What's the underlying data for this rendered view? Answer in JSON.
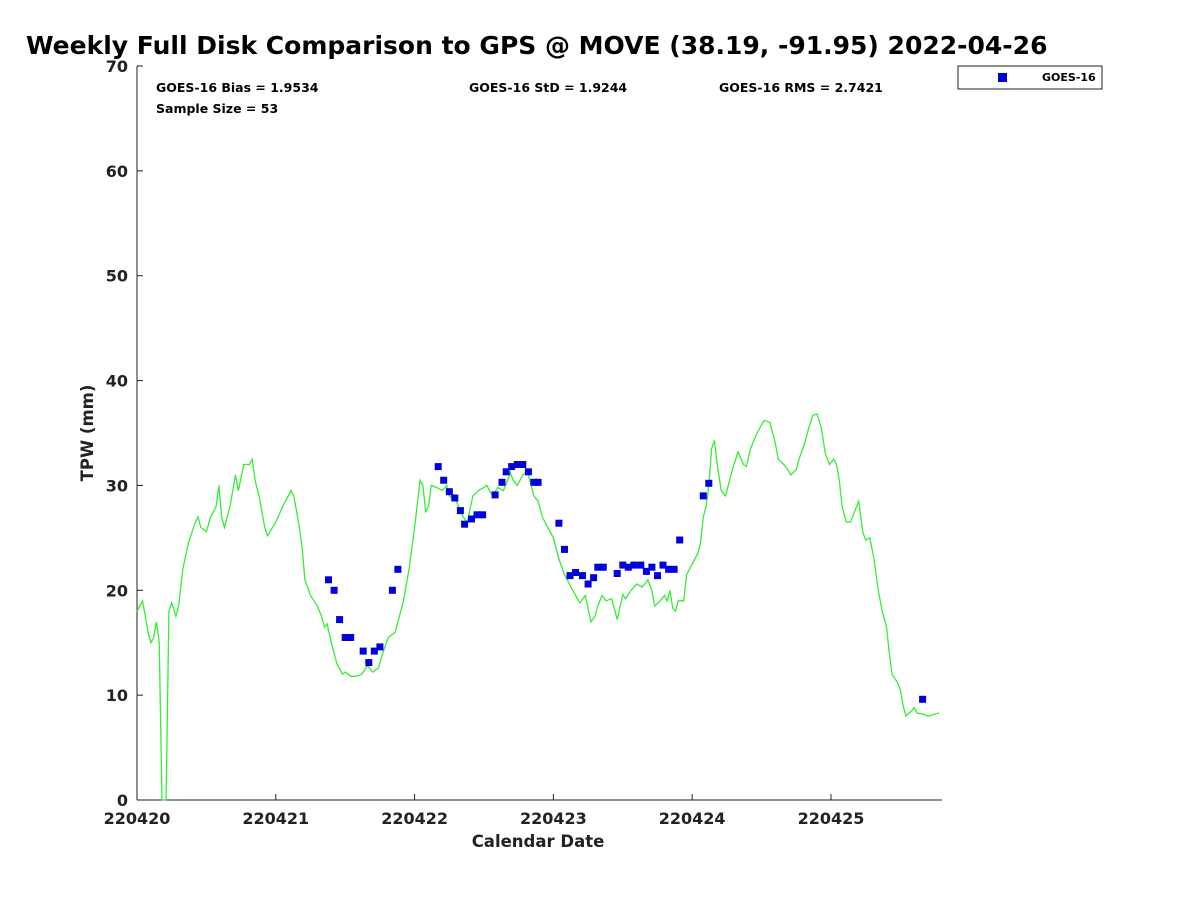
{
  "chart_data": {
    "type": "scatter",
    "title": "Weekly Full Disk Comparison to GPS @ MOVE (38.19, -91.95) 2022-04-26",
    "xlabel": "Calendar Date",
    "ylabel": "TPW (mm)",
    "xlim": [
      0,
      5.8
    ],
    "ylim": [
      0,
      70
    ],
    "x_ticks": [
      0,
      1,
      2,
      3,
      4,
      5
    ],
    "x_tick_labels": [
      "220420",
      "220421",
      "220422",
      "220423",
      "220424",
      "220425"
    ],
    "y_ticks": [
      0,
      10,
      20,
      30,
      40,
      50,
      60,
      70
    ],
    "y_tick_labels": [
      "0",
      "10",
      "20",
      "30",
      "40",
      "50",
      "60",
      "70"
    ],
    "grid": false,
    "legend_position": "top-right",
    "stats": {
      "bias": "GOES-16 Bias = 1.9534",
      "std": "GOES-16 StD = 1.9244",
      "rms": "GOES-16 RMS = 2.7421",
      "sample": "Sample Size = 53"
    },
    "series": [
      {
        "name": "GOES-16",
        "kind": "scatter",
        "marker": "square",
        "color": "#0000dd",
        "points": [
          [
            1.38,
            21.0
          ],
          [
            1.42,
            20.0
          ],
          [
            1.46,
            17.2
          ],
          [
            1.5,
            15.5
          ],
          [
            1.54,
            15.5
          ],
          [
            1.63,
            14.2
          ],
          [
            1.67,
            13.1
          ],
          [
            1.71,
            14.2
          ],
          [
            1.75,
            14.6
          ],
          [
            1.84,
            20.0
          ],
          [
            1.88,
            22.0
          ],
          [
            2.17,
            31.8
          ],
          [
            2.21,
            30.5
          ],
          [
            2.25,
            29.4
          ],
          [
            2.29,
            28.8
          ],
          [
            2.33,
            27.6
          ],
          [
            2.36,
            26.3
          ],
          [
            2.41,
            26.8
          ],
          [
            2.45,
            27.2
          ],
          [
            2.49,
            27.2
          ],
          [
            2.58,
            29.1
          ],
          [
            2.63,
            30.3
          ],
          [
            2.66,
            31.3
          ],
          [
            2.7,
            31.8
          ],
          [
            2.74,
            32.0
          ],
          [
            2.78,
            32.0
          ],
          [
            2.82,
            31.3
          ],
          [
            2.86,
            30.3
          ],
          [
            2.89,
            30.3
          ],
          [
            3.04,
            26.4
          ],
          [
            3.08,
            23.9
          ],
          [
            3.12,
            21.4
          ],
          [
            3.16,
            21.7
          ],
          [
            3.21,
            21.4
          ],
          [
            3.25,
            20.6
          ],
          [
            3.29,
            21.2
          ],
          [
            3.32,
            22.2
          ],
          [
            3.36,
            22.2
          ],
          [
            3.46,
            21.6
          ],
          [
            3.5,
            22.4
          ],
          [
            3.54,
            22.2
          ],
          [
            3.58,
            22.4
          ],
          [
            3.63,
            22.4
          ],
          [
            3.67,
            21.8
          ],
          [
            3.71,
            22.2
          ],
          [
            3.75,
            21.4
          ],
          [
            3.79,
            22.4
          ],
          [
            3.83,
            22.0
          ],
          [
            3.87,
            22.0
          ],
          [
            3.91,
            24.8
          ],
          [
            4.08,
            29.0
          ],
          [
            4.12,
            30.2
          ],
          [
            5.66,
            9.6
          ]
        ]
      },
      {
        "name": "GPS",
        "kind": "line",
        "color": "#33ee33",
        "points": [
          [
            0.0,
            18.0
          ],
          [
            0.04,
            19.0
          ],
          [
            0.08,
            16.0
          ],
          [
            0.1,
            15.0
          ],
          [
            0.12,
            15.5
          ],
          [
            0.14,
            17.0
          ],
          [
            0.16,
            15.0
          ],
          [
            0.18,
            0.0
          ],
          [
            0.21,
            0.0
          ],
          [
            0.23,
            18.0
          ],
          [
            0.25,
            18.8
          ],
          [
            0.28,
            17.5
          ],
          [
            0.3,
            18.5
          ],
          [
            0.33,
            22.0
          ],
          [
            0.37,
            24.5
          ],
          [
            0.42,
            26.5
          ],
          [
            0.44,
            27.0
          ],
          [
            0.46,
            26.0
          ],
          [
            0.5,
            25.6
          ],
          [
            0.53,
            27.0
          ],
          [
            0.57,
            28.0
          ],
          [
            0.59,
            30.0
          ],
          [
            0.61,
            27.0
          ],
          [
            0.63,
            26.0
          ],
          [
            0.67,
            28.0
          ],
          [
            0.71,
            31.0
          ],
          [
            0.73,
            29.5
          ],
          [
            0.77,
            32.0
          ],
          [
            0.81,
            32.0
          ],
          [
            0.83,
            32.5
          ],
          [
            0.85,
            30.5
          ],
          [
            0.88,
            29.0
          ],
          [
            0.92,
            26.0
          ],
          [
            0.94,
            25.2
          ],
          [
            1.0,
            26.5
          ],
          [
            1.05,
            28.0
          ],
          [
            1.09,
            29.0
          ],
          [
            1.11,
            29.5
          ],
          [
            1.13,
            29.0
          ],
          [
            1.17,
            26.0
          ],
          [
            1.19,
            24.0
          ],
          [
            1.21,
            21.0
          ],
          [
            1.25,
            19.5
          ],
          [
            1.3,
            18.5
          ],
          [
            1.33,
            17.5
          ],
          [
            1.35,
            16.5
          ],
          [
            1.37,
            16.8
          ],
          [
            1.4,
            15.0
          ],
          [
            1.44,
            13.0
          ],
          [
            1.48,
            12.0
          ],
          [
            1.5,
            12.2
          ],
          [
            1.54,
            11.8
          ],
          [
            1.58,
            11.8
          ],
          [
            1.62,
            12.0
          ],
          [
            1.66,
            12.8
          ],
          [
            1.7,
            12.2
          ],
          [
            1.74,
            12.6
          ],
          [
            1.77,
            14.0
          ],
          [
            1.81,
            15.5
          ],
          [
            1.86,
            16.0
          ],
          [
            1.89,
            17.5
          ],
          [
            1.92,
            19.0
          ],
          [
            1.96,
            22.0
          ],
          [
            2.0,
            26.0
          ],
          [
            2.04,
            30.5
          ],
          [
            2.06,
            30.0
          ],
          [
            2.08,
            27.5
          ],
          [
            2.1,
            28.0
          ],
          [
            2.12,
            30.0
          ],
          [
            2.16,
            29.8
          ],
          [
            2.2,
            29.5
          ],
          [
            2.23,
            30.0
          ],
          [
            2.25,
            29.0
          ],
          [
            2.3,
            28.5
          ],
          [
            2.35,
            27.0
          ],
          [
            2.38,
            26.5
          ],
          [
            2.42,
            29.0
          ],
          [
            2.46,
            29.5
          ],
          [
            2.5,
            29.8
          ],
          [
            2.52,
            30.0
          ],
          [
            2.56,
            29.0
          ],
          [
            2.6,
            29.8
          ],
          [
            2.64,
            29.5
          ],
          [
            2.67,
            30.5
          ],
          [
            2.69,
            31.2
          ],
          [
            2.71,
            30.5
          ],
          [
            2.74,
            30.0
          ],
          [
            2.78,
            31.0
          ],
          [
            2.8,
            31.2
          ],
          [
            2.82,
            31.0
          ],
          [
            2.84,
            30.0
          ],
          [
            2.86,
            29.0
          ],
          [
            2.89,
            28.5
          ],
          [
            2.92,
            27.0
          ],
          [
            2.96,
            26.0
          ],
          [
            3.0,
            25.0
          ],
          [
            3.04,
            23.0
          ],
          [
            3.08,
            21.5
          ],
          [
            3.12,
            20.5
          ],
          [
            3.16,
            19.5
          ],
          [
            3.19,
            18.8
          ],
          [
            3.23,
            19.5
          ],
          [
            3.27,
            17.0
          ],
          [
            3.3,
            17.5
          ],
          [
            3.32,
            18.5
          ],
          [
            3.35,
            19.5
          ],
          [
            3.38,
            19.0
          ],
          [
            3.42,
            19.2
          ],
          [
            3.46,
            17.2
          ],
          [
            3.5,
            19.6
          ],
          [
            3.52,
            19.2
          ],
          [
            3.56,
            20.0
          ],
          [
            3.6,
            20.6
          ],
          [
            3.64,
            20.3
          ],
          [
            3.68,
            21.0
          ],
          [
            3.71,
            20.0
          ],
          [
            3.73,
            18.5
          ],
          [
            3.77,
            19.0
          ],
          [
            3.8,
            19.5
          ],
          [
            3.82,
            19.0
          ],
          [
            3.84,
            20.0
          ],
          [
            3.86,
            18.3
          ],
          [
            3.88,
            18.0
          ],
          [
            3.9,
            19.0
          ],
          [
            3.94,
            19.0
          ],
          [
            3.96,
            21.5
          ],
          [
            4.0,
            22.5
          ],
          [
            4.04,
            23.5
          ],
          [
            4.06,
            24.5
          ],
          [
            4.08,
            27.0
          ],
          [
            4.1,
            28.0
          ],
          [
            4.12,
            30.0
          ],
          [
            4.14,
            33.5
          ],
          [
            4.16,
            34.3
          ],
          [
            4.18,
            32.0
          ],
          [
            4.21,
            29.5
          ],
          [
            4.24,
            29.0
          ],
          [
            4.27,
            30.5
          ],
          [
            4.29,
            31.5
          ],
          [
            4.33,
            33.2
          ],
          [
            4.37,
            32.0
          ],
          [
            4.39,
            31.8
          ],
          [
            4.42,
            33.5
          ],
          [
            4.46,
            34.8
          ],
          [
            4.5,
            35.8
          ],
          [
            4.52,
            36.2
          ],
          [
            4.56,
            36.0
          ],
          [
            4.6,
            34.0
          ],
          [
            4.62,
            32.5
          ],
          [
            4.66,
            32.0
          ],
          [
            4.69,
            31.5
          ],
          [
            4.71,
            31.0
          ],
          [
            4.75,
            31.5
          ],
          [
            4.77,
            32.5
          ],
          [
            4.81,
            34.0
          ],
          [
            4.84,
            35.5
          ],
          [
            4.87,
            36.7
          ],
          [
            4.9,
            36.8
          ],
          [
            4.93,
            35.5
          ],
          [
            4.96,
            33.0
          ],
          [
            4.99,
            32.0
          ],
          [
            5.02,
            32.5
          ],
          [
            5.04,
            32.0
          ],
          [
            5.06,
            30.5
          ],
          [
            5.08,
            28.0
          ],
          [
            5.11,
            26.5
          ],
          [
            5.14,
            26.5
          ],
          [
            5.17,
            27.5
          ],
          [
            5.2,
            28.5
          ],
          [
            5.23,
            25.5
          ],
          [
            5.25,
            24.8
          ],
          [
            5.28,
            25.0
          ],
          [
            5.31,
            23.0
          ],
          [
            5.34,
            20.0
          ],
          [
            5.37,
            18.0
          ],
          [
            5.4,
            16.5
          ],
          [
            5.42,
            14.0
          ],
          [
            5.44,
            12.0
          ],
          [
            5.48,
            11.2
          ],
          [
            5.5,
            10.5
          ],
          [
            5.52,
            9.0
          ],
          [
            5.54,
            8.0
          ],
          [
            5.58,
            8.5
          ],
          [
            5.6,
            8.8
          ],
          [
            5.62,
            8.3
          ],
          [
            5.66,
            8.2
          ],
          [
            5.7,
            8.0
          ],
          [
            5.75,
            8.2
          ],
          [
            5.78,
            8.3
          ]
        ]
      }
    ]
  },
  "legend": {
    "label": "GOES-16"
  },
  "colors": {
    "goes": "#0000dd",
    "gps": "#33ee33",
    "axis": "#222222"
  }
}
